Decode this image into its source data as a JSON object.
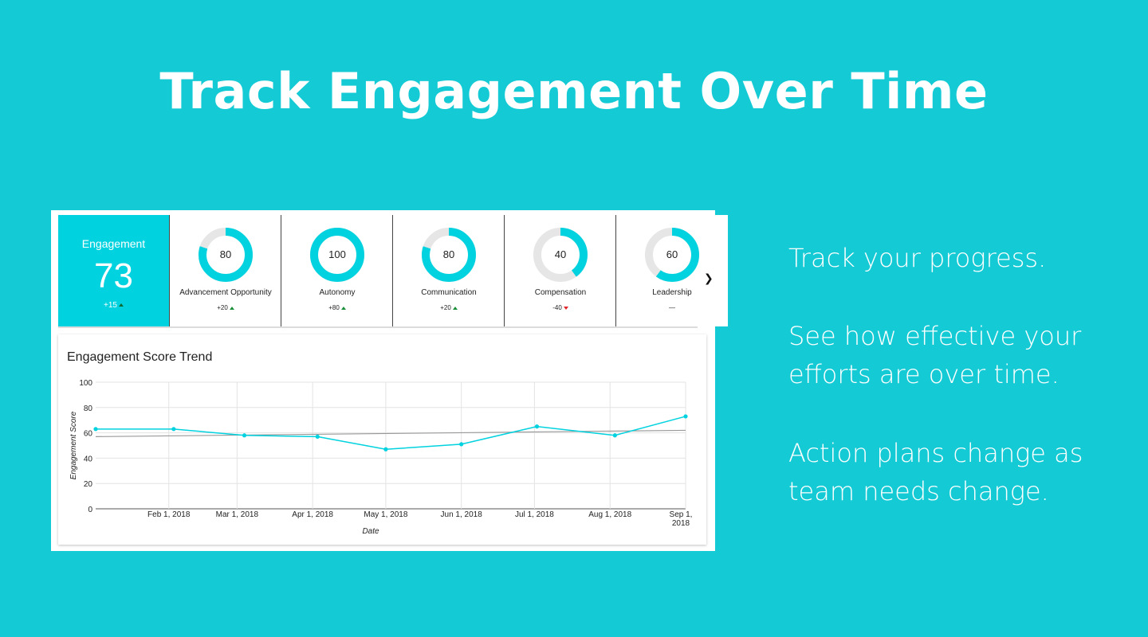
{
  "headline": "Track Engagement Over Time",
  "engagement": {
    "label": "Engagement",
    "value": "73",
    "delta": "+15"
  },
  "metrics": [
    {
      "label": "Advancement Opportunity",
      "value": 80,
      "delta": "+20",
      "direction": "up"
    },
    {
      "label": "Autonomy",
      "value": 100,
      "delta": "+80",
      "direction": "up"
    },
    {
      "label": "Communication",
      "value": 80,
      "delta": "+20",
      "direction": "up"
    },
    {
      "label": "Compensation",
      "value": 40,
      "delta": "-40",
      "direction": "down"
    },
    {
      "label": "Leadership",
      "value": 60,
      "delta": "—",
      "direction": "none"
    }
  ],
  "side_text": [
    "Track your progress.",
    "See how effective your efforts are over time.",
    "Action plans change as team needs change."
  ],
  "colors": {
    "background": "#14cad5",
    "accent": "#00d2df",
    "donut_track": "#e6e6e6",
    "up": "#1a8f3a",
    "down": "#e0262a",
    "trendline": "#999999"
  },
  "chart_data": {
    "type": "line",
    "title": "Engagement Score Trend",
    "xlabel": "Date",
    "ylabel": "Engagement Score",
    "ylim": [
      0,
      100
    ],
    "yticks": [
      0,
      20,
      40,
      60,
      80,
      100
    ],
    "xticks": [
      "Feb 1, 2018",
      "Mar 1, 2018",
      "Apr 1, 2018",
      "May 1, 2018",
      "Jun 1, 2018",
      "Jul 1, 2018",
      "Aug 1, 2018",
      "Sep 1, 2018"
    ],
    "xlim": [
      "2018-01-02",
      "2018-09-01"
    ],
    "grid": true,
    "series": [
      {
        "x": [
          "2018-01-02",
          "2018-02-03",
          "2018-03-04",
          "2018-04-03",
          "2018-05-01",
          "2018-06-01",
          "2018-07-02",
          "2018-08-03",
          "2018-09-01"
        ],
        "y": [
          63,
          63,
          58,
          57,
          47,
          51,
          65,
          58,
          73
        ]
      },
      {
        "x": [
          "2018-01-02",
          "2018-09-01"
        ],
        "y": [
          57,
          62
        ]
      }
    ]
  }
}
